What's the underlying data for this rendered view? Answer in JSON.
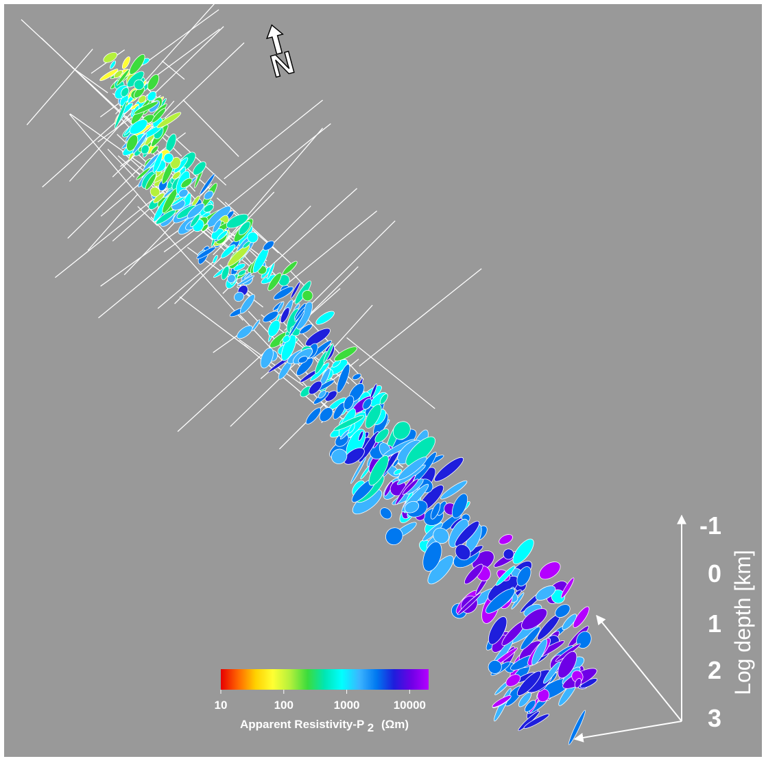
{
  "colorbar": {
    "title_main": "Apparent Resistivity-P",
    "title_sub": "2",
    "title_unit": "(Ωm)",
    "ticks": [
      "10",
      "100",
      "1000",
      "10000"
    ],
    "range": [
      10,
      20000
    ],
    "scale": "log",
    "colors": [
      "#e80000",
      "#ff6600",
      "#ffd000",
      "#ffff33",
      "#b4f03c",
      "#3cdc3c",
      "#00e6b4",
      "#00ffff",
      "#3cb4ff",
      "#0078f0",
      "#1e1edc",
      "#6e00e6",
      "#b400ff"
    ]
  },
  "depth_axis": {
    "label": "Log depth [km]",
    "ticks": [
      "-1",
      "0",
      "1",
      "2",
      "3"
    ]
  },
  "north_arrow": {
    "letter": "N"
  },
  "colors": {
    "background": "#999999",
    "stroke": "#ffffff"
  }
}
